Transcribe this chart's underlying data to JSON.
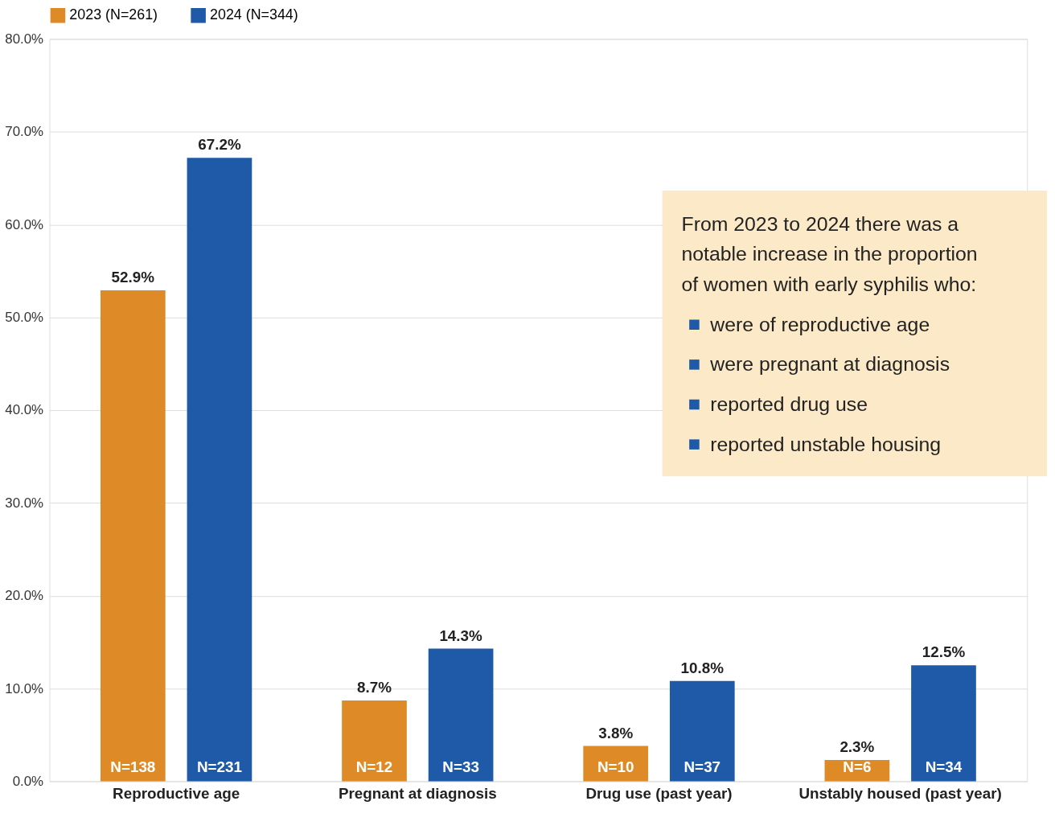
{
  "chart_data": {
    "type": "bar",
    "categories": [
      "Reproductive age",
      "Pregnant at diagnosis",
      "Drug use (past year)",
      "Unstably housed (past year)"
    ],
    "series": [
      {
        "name": "2023 (N=261)",
        "color": "#dd8a27",
        "values": [
          52.9,
          8.7,
          3.8,
          2.3
        ],
        "value_labels": [
          "52.9%",
          "8.7%",
          "3.8%",
          "2.3%"
        ]
      },
      {
        "name": "2024 (N=344)",
        "color": "#1f5aa8",
        "values": [
          67.2,
          14.3,
          10.8,
          12.5
        ],
        "value_labels": [
          "67.2%",
          "14.3%",
          "10.8%",
          "12.5%"
        ]
      }
    ],
    "ylim": [
      0,
      80
    ],
    "yticks": [
      {
        "value": 0,
        "label": "0.0%"
      },
      {
        "value": 10,
        "label": "10.0%"
      },
      {
        "value": 20,
        "label": "20.0%"
      },
      {
        "value": 30,
        "label": "30.0%"
      },
      {
        "value": 40,
        "label": "40.0%"
      },
      {
        "value": 50,
        "label": "50.0%"
      },
      {
        "value": 60,
        "label": "60.0%"
      },
      {
        "value": 70,
        "label": "70.0%"
      },
      {
        "value": 80,
        "label": "80.0%"
      }
    ],
    "grid": "y",
    "legend": "top",
    "annotations": [
      "N=138",
      "N=231",
      "N=12",
      "N=33",
      "N=10",
      "N=37",
      "N=6",
      "N=34",
      "From 2023 to 2024 there was a notable increase in the proportion of women with early syphilis who:",
      "were of reproductive age",
      "were pregnant at diagnosis",
      "reported drug use",
      "reported unstable housing"
    ]
  }
}
